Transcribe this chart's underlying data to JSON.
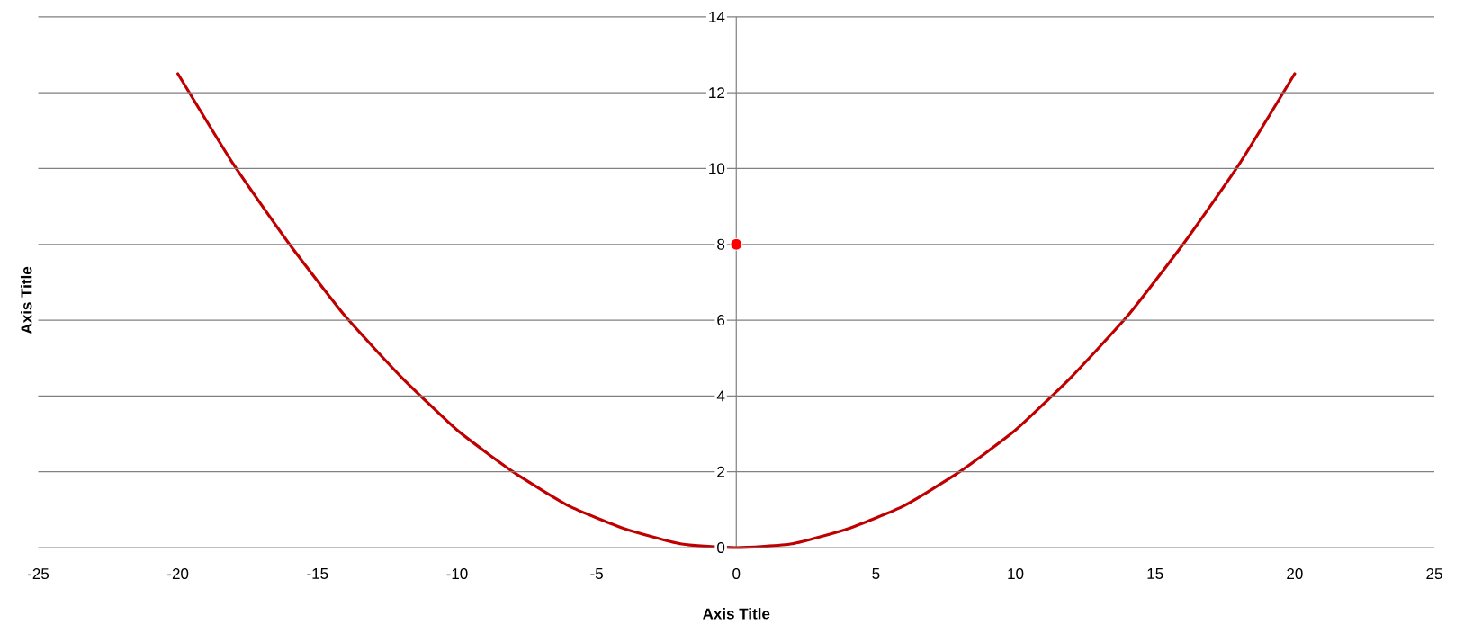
{
  "chart_data": {
    "type": "line",
    "xlabel": "Axis Title",
    "ylabel": "Axis Title",
    "xlim": [
      -25,
      25
    ],
    "ylim": [
      0,
      14
    ],
    "xticks": [
      -25,
      -20,
      -15,
      -10,
      -5,
      0,
      5,
      10,
      15,
      20,
      25
    ],
    "yticks": [
      0,
      2,
      4,
      6,
      8,
      10,
      12,
      14
    ],
    "grid": "y",
    "series": [
      {
        "type": "line",
        "color": "#c00000",
        "x": [
          -20,
          -18,
          -16,
          -14,
          -12,
          -10,
          -8,
          -6,
          -4,
          -2,
          0,
          2,
          4,
          6,
          8,
          10,
          12,
          14,
          16,
          18,
          20
        ],
        "values": [
          12.5,
          10.1,
          8,
          6.1,
          4.5,
          3.1,
          2,
          1.1,
          0.5,
          0.1,
          0,
          0.1,
          0.5,
          1.1,
          2,
          3.1,
          4.5,
          6.1,
          8,
          10.1,
          12.5
        ]
      },
      {
        "type": "scatter",
        "color": "#ff0000",
        "x": [
          0
        ],
        "values": [
          8
        ]
      }
    ]
  }
}
